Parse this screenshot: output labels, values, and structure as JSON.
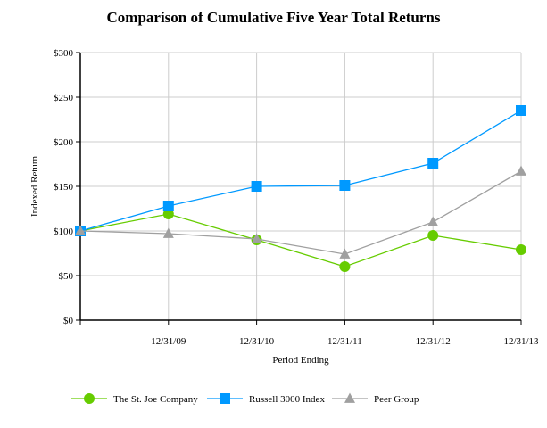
{
  "chart_data": {
    "type": "line",
    "title": "Comparison of Cumulative Five Year Total Returns",
    "xlabel": "Period Ending",
    "ylabel": "Indexed Return",
    "categories": [
      "",
      "12/31/09",
      "12/31/10",
      "12/31/11",
      "12/31/12",
      "12/31/13"
    ],
    "ylim": [
      0,
      300
    ],
    "yticks": [
      0,
      50,
      100,
      150,
      200,
      250,
      300
    ],
    "ytick_labels": [
      "$0",
      "$50",
      "$100",
      "$150",
      "$200",
      "$250",
      "$300"
    ],
    "grid": true,
    "legend": "bottom",
    "series": [
      {
        "name": "The St. Joe Company",
        "color": "#66cc00",
        "marker": "circle",
        "values": [
          100,
          119,
          90,
          60,
          95,
          79
        ]
      },
      {
        "name": "Russell 3000 Index",
        "color": "#0099ff",
        "marker": "square",
        "values": [
          100,
          128,
          150,
          151,
          176,
          235
        ]
      },
      {
        "name": "Peer Group",
        "color": "#a0a0a0",
        "marker": "triangle",
        "values": [
          100,
          97,
          91,
          74,
          110,
          167
        ]
      }
    ]
  }
}
